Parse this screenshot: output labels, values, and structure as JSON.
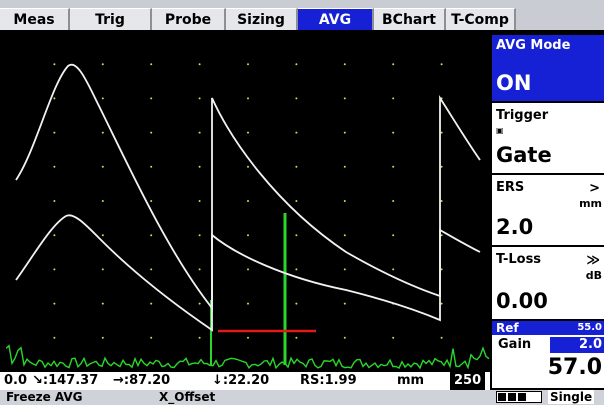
{
  "tabs": [
    "Meas",
    "Trig",
    "Probe",
    "Sizing",
    "AVG",
    "BChart",
    "T-Comp"
  ],
  "active_tab": 4,
  "readout": {
    "start": "0.0",
    "v1": "↘:147.37",
    "v2": "→:87.20",
    "v3": "↓:22.20",
    "rs": "RS:1.99",
    "unit": "mm",
    "end": "250"
  },
  "footer": {
    "left": "Freeze AVG",
    "middle": "X_Offset",
    "right": "Single"
  },
  "panel": {
    "avg_mode_label": "AVG Mode",
    "avg_mode_value": "ON",
    "trigger_label": "Trigger",
    "trigger_value": "Gate",
    "ers_label": "ERS",
    "ers_arrow": ">",
    "ers_unit": "mm",
    "ers_value": "2.0",
    "tloss_label": "T-Loss",
    "tloss_arrow": "≫",
    "tloss_unit": "dB",
    "tloss_value": "0.00",
    "ref_label": "Ref",
    "ref_value": "55.0",
    "gain_label": "Gain",
    "gain_value": "2.0",
    "main_value": "57.0"
  },
  "colors": {
    "active_tab": "#1621d6",
    "echo": "#2bd62b",
    "gate": "#e01a1a",
    "curve": "#ffffff",
    "grid": "#d8d84a"
  },
  "icons": [
    "trigger-lock-icon",
    "battery-icon"
  ]
}
